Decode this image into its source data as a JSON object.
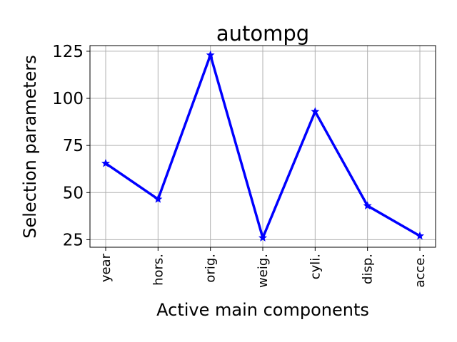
{
  "chart_data": {
    "type": "line",
    "title": "autompg",
    "xlabel": "Active main components",
    "ylabel": "Selection parameters",
    "categories": [
      "year",
      "hors.",
      "orig.",
      "weig.",
      "cyli.",
      "disp.",
      "acce."
    ],
    "series": [
      {
        "values": [
          65.5,
          46.5,
          123,
          26,
          93,
          43,
          27
        ],
        "color": "#0000ff",
        "marker": "star"
      }
    ],
    "yticks": [
      25,
      50,
      75,
      100,
      125
    ],
    "ylim": [
      21,
      128
    ],
    "grid": true
  }
}
